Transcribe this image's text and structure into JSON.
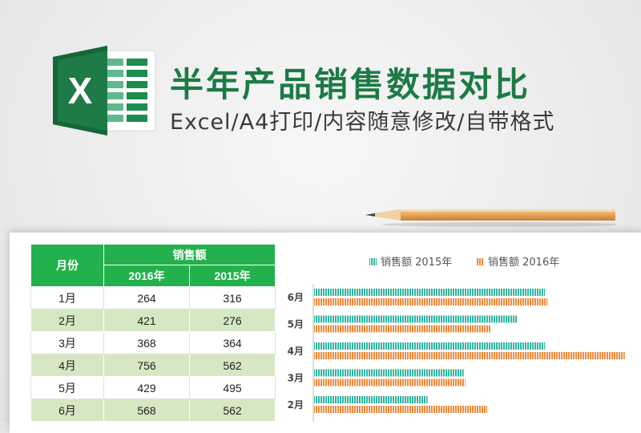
{
  "header": {
    "logo_letter": "X",
    "title": "半年产品销售数据对比",
    "subtitle": "Excel/A4打印/内容随意修改/自带格式",
    "title_color": "#1c7a45"
  },
  "table": {
    "col_month": "月份",
    "col_group": "销售额",
    "col_2016": "2016年",
    "col_2015": "2015年",
    "header_bg": "#22b14c",
    "stripe_bg": "#d6e7c4",
    "rows": [
      {
        "month": "1月",
        "y2016": "264",
        "y2015": "316"
      },
      {
        "month": "2月",
        "y2016": "421",
        "y2015": "276"
      },
      {
        "month": "3月",
        "y2016": "368",
        "y2015": "364"
      },
      {
        "month": "4月",
        "y2016": "756",
        "y2015": "562"
      },
      {
        "month": "5月",
        "y2016": "429",
        "y2015": "495"
      },
      {
        "month": "6月",
        "y2016": "568",
        "y2015": "562"
      }
    ]
  },
  "chart_data": {
    "type": "bar",
    "orientation": "horizontal",
    "categories": [
      "6月",
      "5月",
      "4月",
      "3月",
      "2月"
    ],
    "series": [
      {
        "name": "销售额 2015年",
        "color": "#2fb5a0",
        "values": [
          562,
          495,
          562,
          364,
          276
        ]
      },
      {
        "name": "销售额 2016年",
        "color": "#f0883a",
        "values": [
          568,
          429,
          756,
          368,
          421
        ]
      }
    ],
    "xlim": [
      0,
      780
    ],
    "legend": "top",
    "grid": false
  }
}
